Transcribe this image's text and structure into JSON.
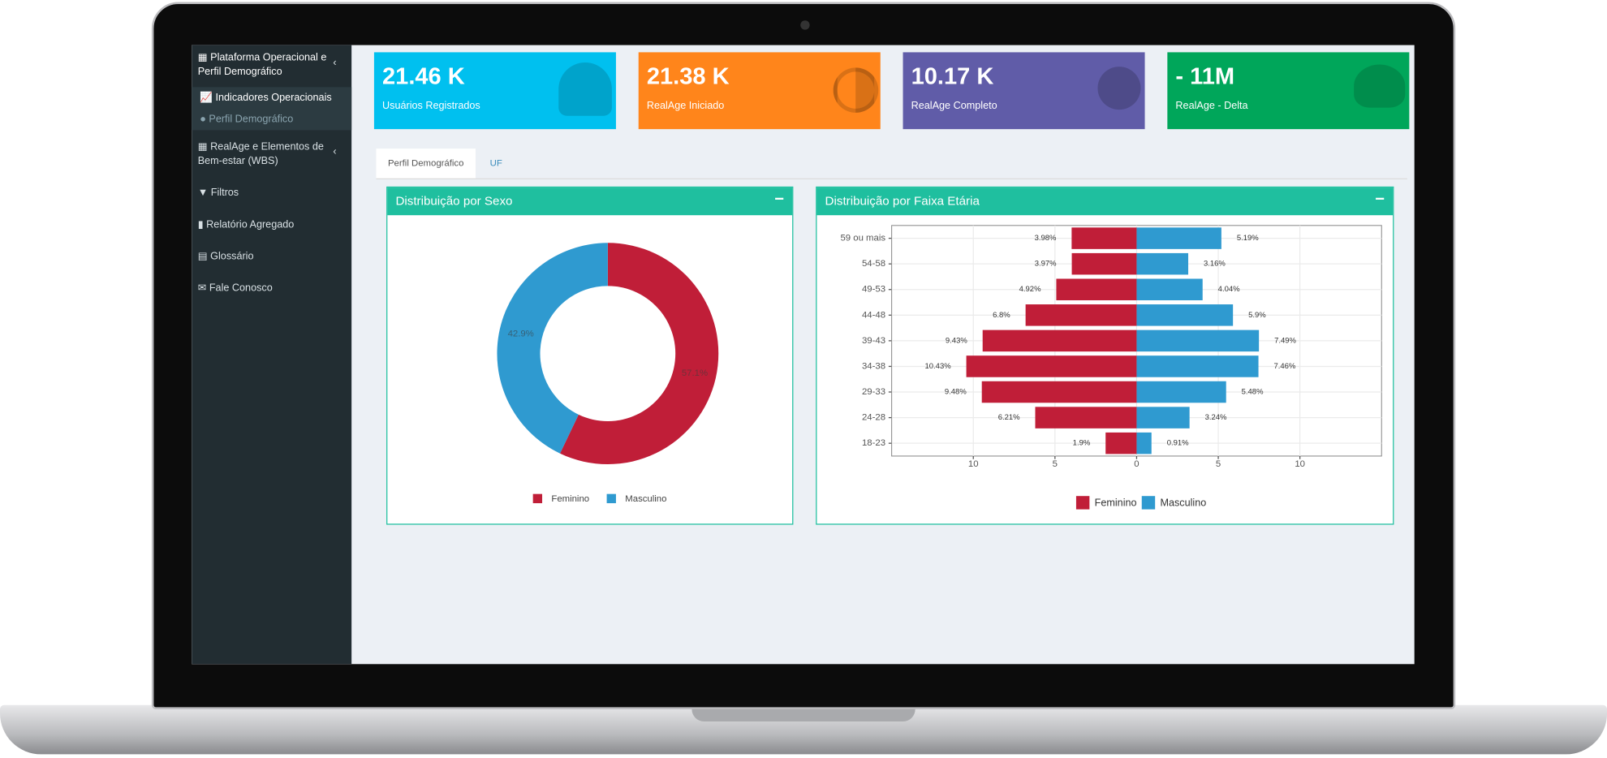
{
  "sidebar": {
    "items": [
      {
        "label": "Plataforma Operacional e Perfil Demográfico"
      },
      {
        "label": "Indicadores Operacionais"
      },
      {
        "label": "Perfil Demográfico"
      },
      {
        "label": "RealAge e Elementos de Bem-estar (WBS)"
      },
      {
        "label": "Filtros"
      },
      {
        "label": "Relatório Agregado"
      },
      {
        "label": "Glossário"
      },
      {
        "label": "Fale Conosco"
      }
    ]
  },
  "kpis": [
    {
      "value": "21.46 K",
      "label": "Usuários Registrados"
    },
    {
      "value": "21.38 K",
      "label": "RealAge Iniciado"
    },
    {
      "value": "10.17 K",
      "label": "RealAge Completo"
    },
    {
      "value": "- 11M",
      "label": "RealAge - Delta"
    }
  ],
  "tabs": [
    "Perfil Demográfico",
    "UF"
  ],
  "chart_data": [
    {
      "type": "pie",
      "title": "Distribuição por Sexo",
      "donut": true,
      "categories": [
        "Feminino",
        "Masculino"
      ],
      "values": [
        57.1,
        42.9
      ],
      "value_labels": [
        "57.1%",
        "42.9%"
      ],
      "colors": [
        "#c01e38",
        "#2f9ad0"
      ]
    },
    {
      "type": "pyramid",
      "title": "Distribuição por Faixa Etária",
      "categories": [
        "59 ou mais",
        "54-58",
        "49-53",
        "44-48",
        "39-43",
        "34-38",
        "29-33",
        "24-28",
        "18-23"
      ],
      "series": [
        {
          "name": "Feminino",
          "color": "#c01e38",
          "values": [
            3.98,
            3.97,
            4.92,
            6.8,
            9.43,
            10.43,
            9.48,
            6.21,
            1.9
          ],
          "value_labels": [
            "3.98%",
            "3.97%",
            "4.92%",
            "6.8%",
            "9.43%",
            "10.43%",
            "9.48%",
            "6.21%",
            "1.9%"
          ]
        },
        {
          "name": "Masculino",
          "color": "#2f9ad0",
          "values": [
            5.19,
            3.16,
            4.04,
            5.9,
            7.49,
            7.46,
            5.48,
            3.24,
            0.91
          ],
          "value_labels": [
            "5.19%",
            "3.16%",
            "4.04%",
            "5.9%",
            "7.49%",
            "7.46%",
            "5.48%",
            "3.24%",
            "0.91%"
          ]
        }
      ],
      "xlim": [
        -15,
        15
      ],
      "xticks": [
        {
          "value": -10,
          "label": "10"
        },
        {
          "value": -5,
          "label": "5"
        },
        0,
        5,
        10
      ],
      "grid": true
    }
  ]
}
